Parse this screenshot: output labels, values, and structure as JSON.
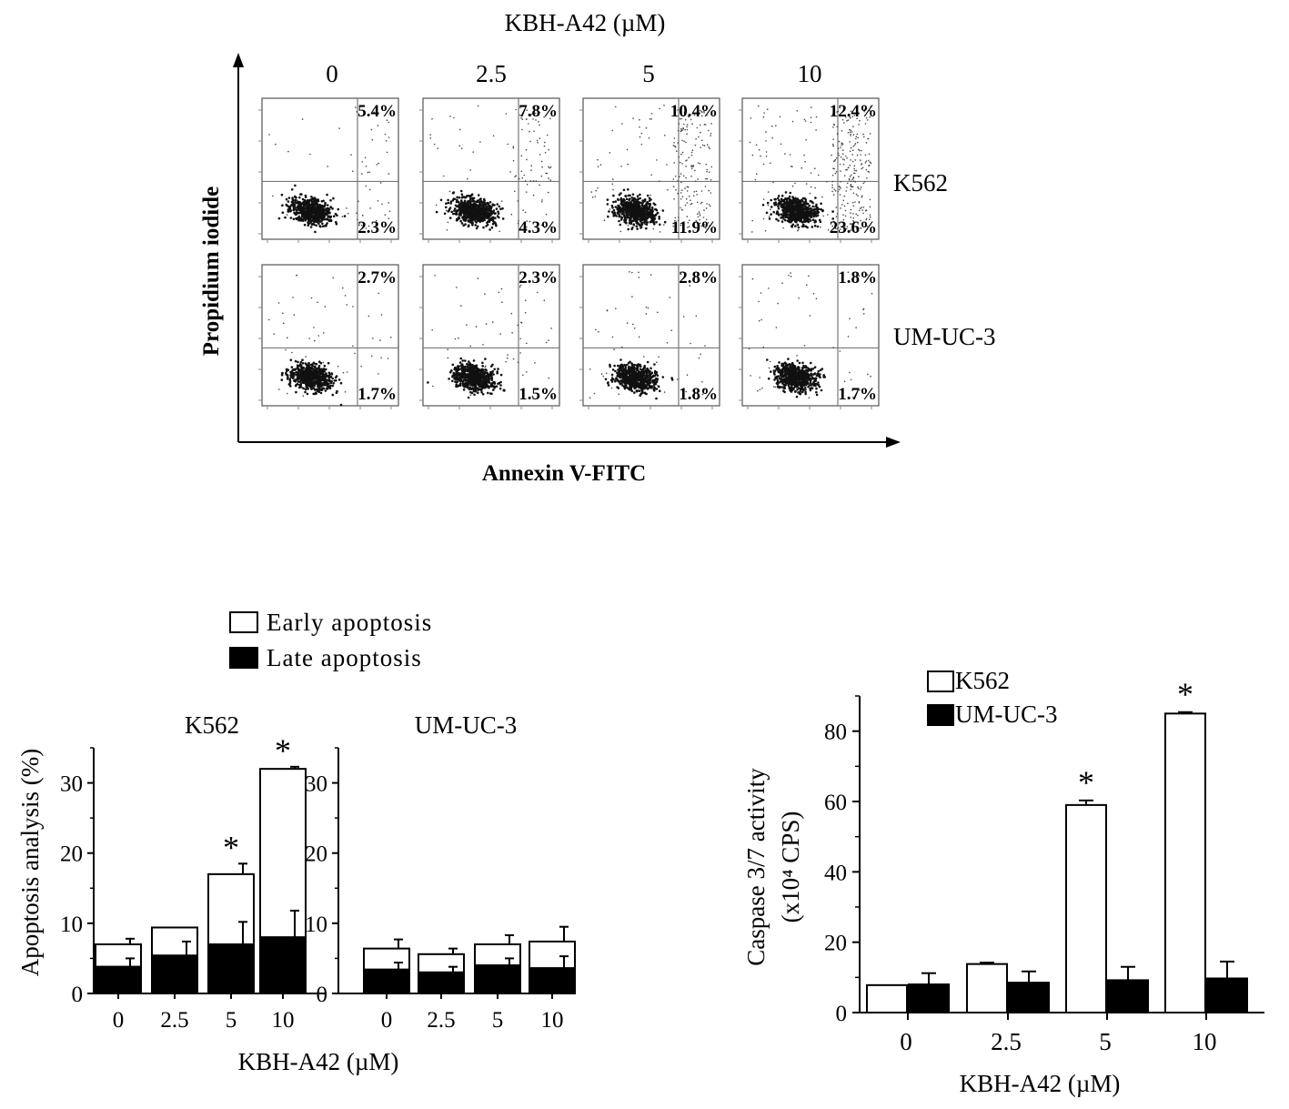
{
  "flow_panel": {
    "title": "KBH-A42 (µM)",
    "x_axis_label": "Annexin V-FITC",
    "y_axis_label": "Propidium iodide",
    "concentrations": [
      "0",
      "2.5",
      "5",
      "10"
    ],
    "cell_lines": [
      "K562",
      "UM-UC-3"
    ],
    "quadrant_percentages": [
      [
        {
          "upper_right": "5.4%",
          "lower_right": "2.3%"
        },
        {
          "upper_right": "7.8%",
          "lower_right": "4.3%"
        },
        {
          "upper_right": "10.4%",
          "lower_right": "11.9%"
        },
        {
          "upper_right": "12.4%",
          "lower_right": "23.6%"
        }
      ],
      [
        {
          "upper_right": "2.7%",
          "lower_right": "1.7%"
        },
        {
          "upper_right": "2.3%",
          "lower_right": "1.5%"
        },
        {
          "upper_right": "2.8%",
          "lower_right": "1.8%"
        },
        {
          "upper_right": "1.8%",
          "lower_right": "1.7%"
        }
      ]
    ]
  },
  "chart_data": [
    {
      "type": "bar",
      "stacked": true,
      "title": "K562",
      "categories": [
        "0",
        "2.5",
        "5",
        "10"
      ],
      "series": [
        {
          "name": "Late apoptosis",
          "values": [
            3.8,
            5.4,
            7.0,
            8.0
          ],
          "errors": [
            1.2,
            2.0,
            3.2,
            3.8
          ],
          "color": "#000000"
        },
        {
          "name": "Early apoptosis",
          "values": [
            3.2,
            4.0,
            10.0,
            24.0
          ],
          "errors": [
            0.8,
            0.0,
            1.5,
            0.3
          ],
          "color": "#ffffff"
        }
      ],
      "ylim": [
        0,
        35
      ],
      "yticks": [
        "0",
        "10",
        "20",
        "30"
      ],
      "xlabel": "KBH-A42 (µM)",
      "ylabel": "Apoptosis analysis (%)",
      "significant": [
        false,
        false,
        true,
        true
      ],
      "legend_position": "top"
    },
    {
      "type": "bar",
      "stacked": true,
      "title": "UM-UC-3",
      "categories": [
        "0",
        "2.5",
        "5",
        "10"
      ],
      "series": [
        {
          "name": "Late apoptosis",
          "values": [
            3.4,
            3.0,
            4.0,
            3.6
          ],
          "errors": [
            1.0,
            0.8,
            1.0,
            1.7
          ],
          "color": "#000000"
        },
        {
          "name": "Early apoptosis",
          "values": [
            3.0,
            2.6,
            3.0,
            3.8
          ],
          "errors": [
            1.3,
            0.8,
            1.3,
            2.1
          ],
          "color": "#ffffff"
        }
      ],
      "ylim": [
        0,
        35
      ],
      "yticks": [
        "0",
        "10",
        "20",
        "30"
      ],
      "significant": [
        false,
        false,
        false,
        false
      ]
    },
    {
      "type": "bar",
      "grouped": true,
      "categories": [
        "0",
        "2.5",
        "5",
        "10"
      ],
      "series": [
        {
          "name": "K562",
          "values": [
            7.8,
            13.8,
            59.0,
            85.0
          ],
          "errors": [
            0.0,
            0.4,
            1.3,
            0.4
          ],
          "color": "#ffffff"
        },
        {
          "name": "UM-UC-3",
          "values": [
            8.0,
            8.5,
            9.2,
            9.7
          ],
          "errors": [
            3.2,
            3.2,
            3.8,
            4.8
          ],
          "color": "#000000"
        }
      ],
      "ylim": [
        0,
        90
      ],
      "yticks": [
        "0",
        "20",
        "40",
        "60",
        "80"
      ],
      "xlabel": "KBH-A42 (µM)",
      "ylabel_line1": "Caspase 3/7 activity",
      "ylabel_line2": "(x10⁴ CPS)",
      "significant": [
        false,
        false,
        true,
        true
      ],
      "legend_position": "top-left"
    }
  ]
}
